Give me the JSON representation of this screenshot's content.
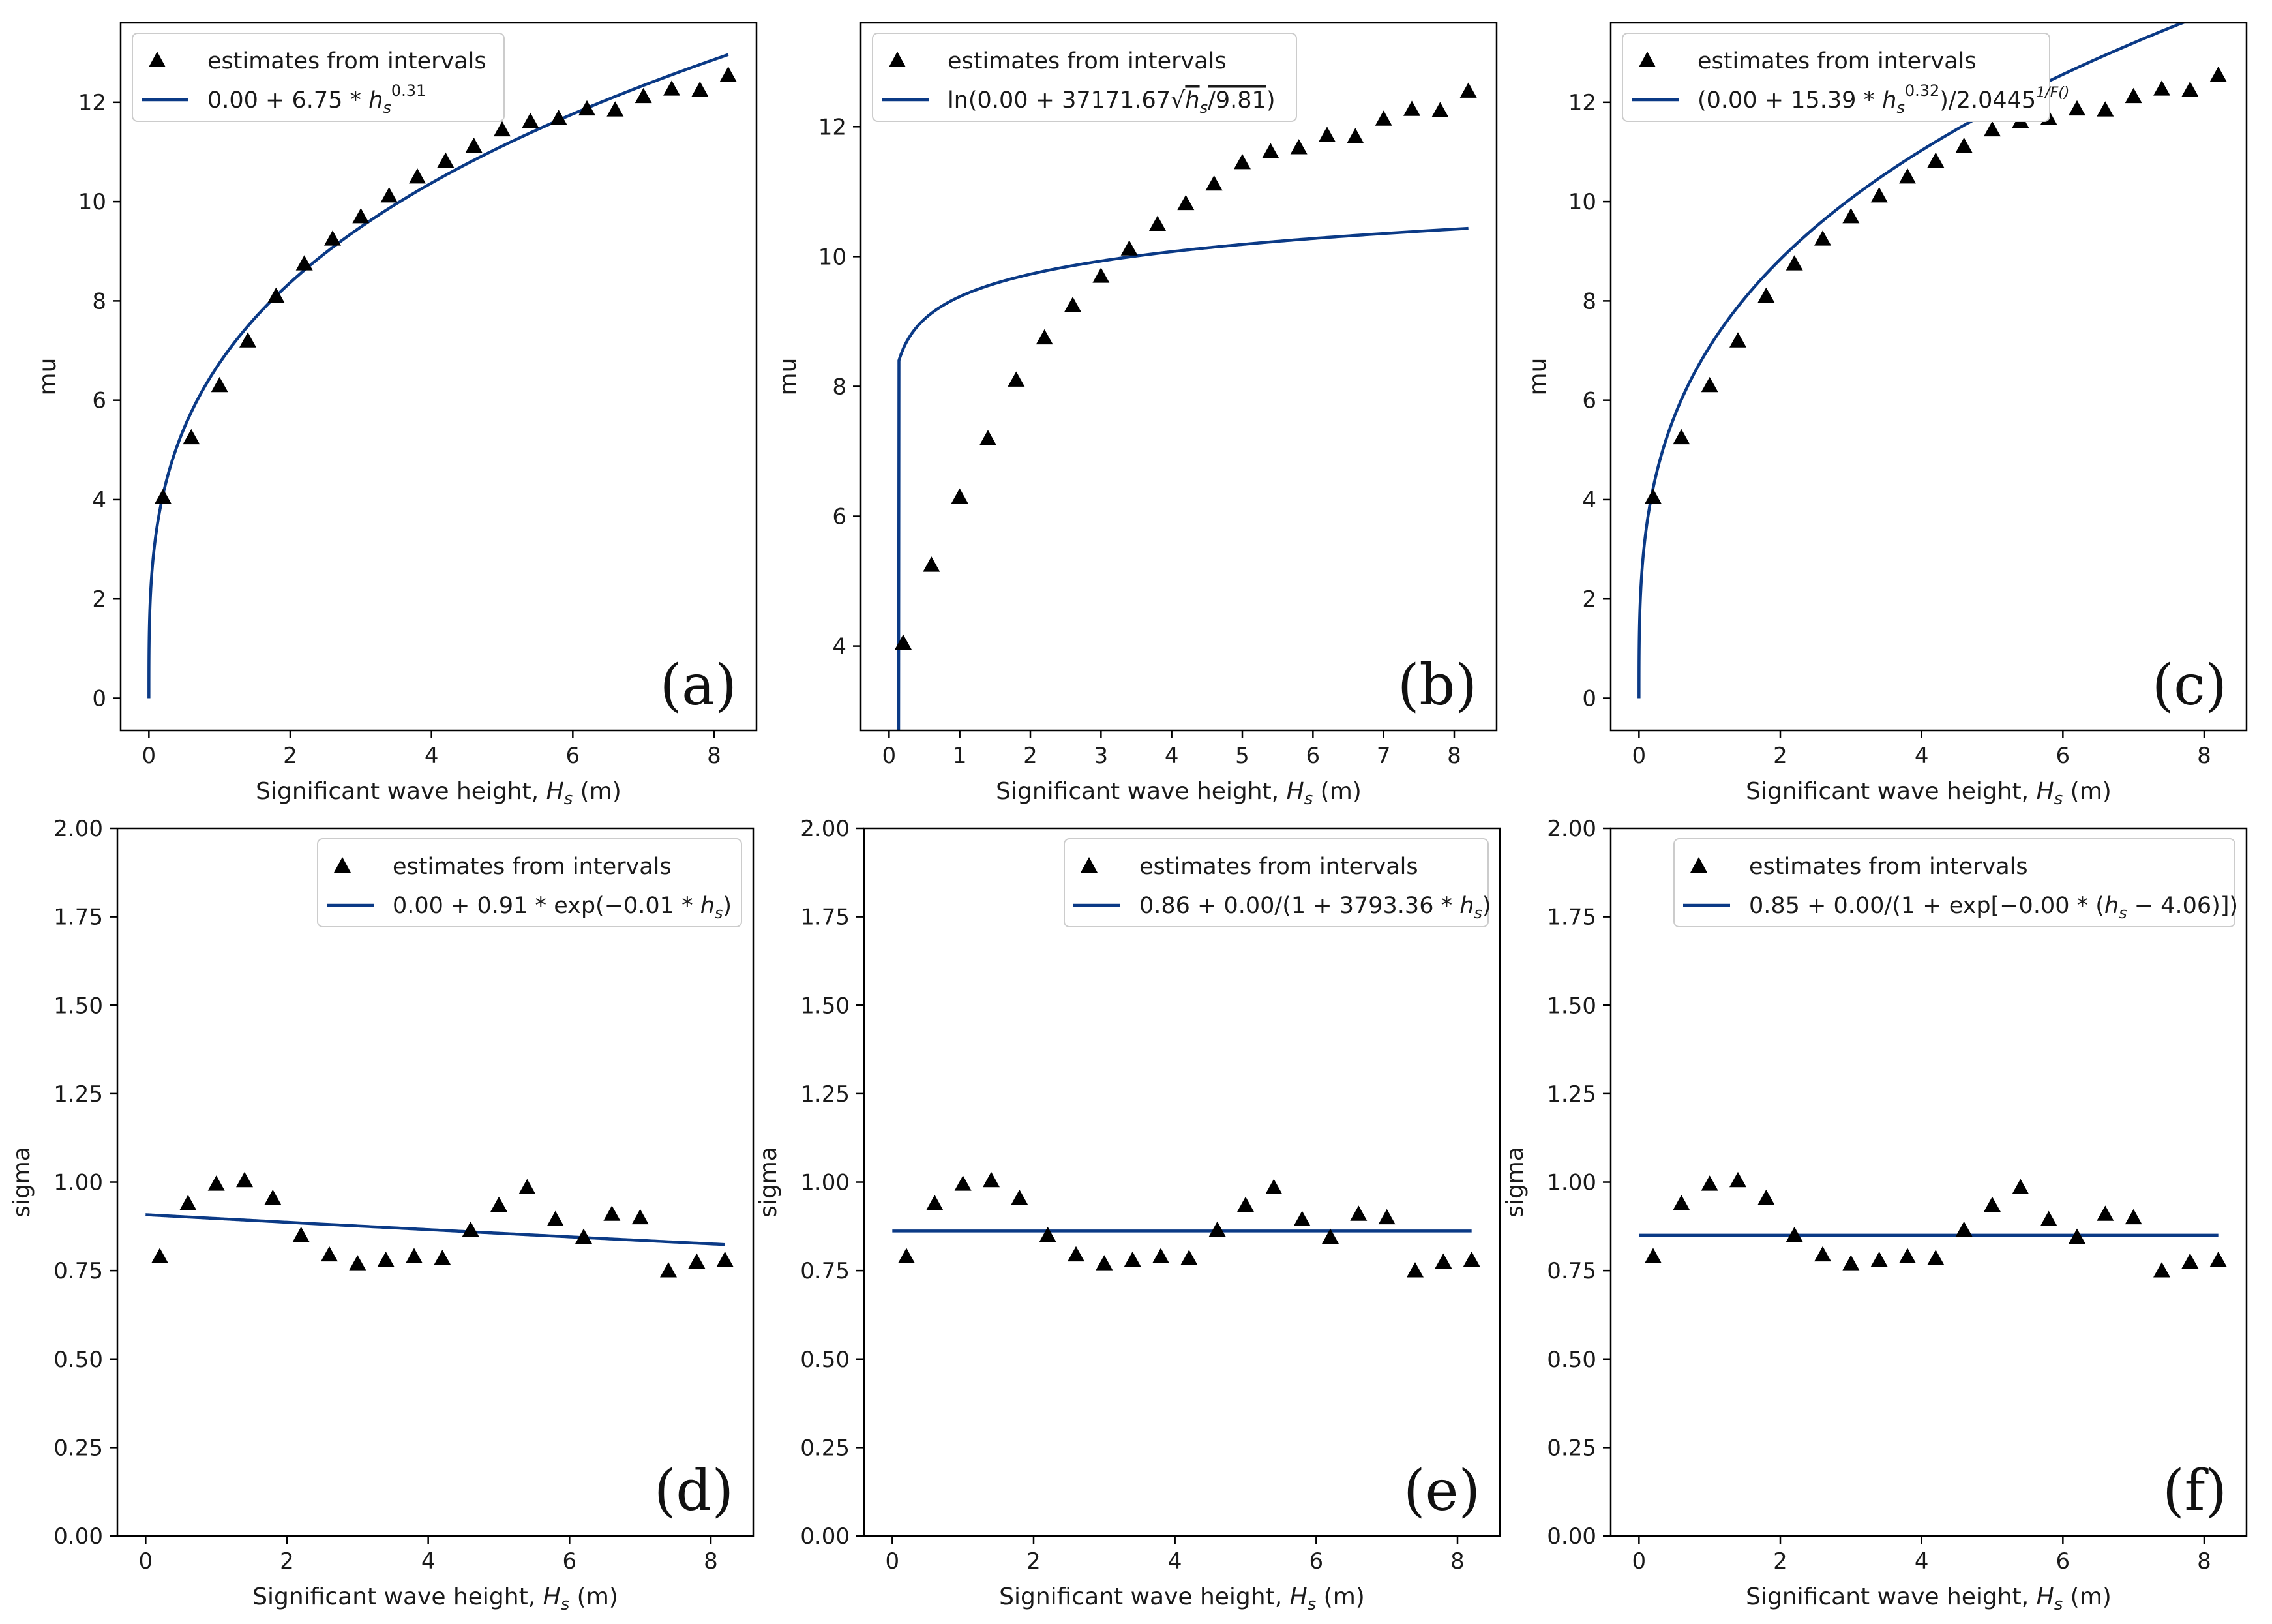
{
  "colors": {
    "fit_line": "#0b3a86",
    "marker": "#000000",
    "axes": "#000000"
  },
  "chart_data": [
    {
      "id": "a",
      "type": "scatter+line",
      "panel_label": "(a)",
      "xlabel": {
        "prefix": "Significant wave height, ",
        "var": "H",
        "sub": "s",
        "suffix": " (m)"
      },
      "ylabel": "mu",
      "xlim": [
        -0.4,
        8.6
      ],
      "ylim": [
        -0.65,
        13.6
      ],
      "xticks": [
        0,
        2,
        4,
        6,
        8
      ],
      "yticks": [
        0,
        2,
        4,
        6,
        8,
        10,
        12
      ],
      "tick_labels_y": [
        "0",
        "2",
        "4",
        "6",
        "8",
        "10",
        "12"
      ],
      "tick_labels_x": [
        "0",
        "2",
        "4",
        "6",
        "8"
      ],
      "legend_position": "upper-left",
      "legend": {
        "points": "estimates from intervals",
        "fit": "0.00 + 6.75 * hs^0.31",
        "fit_parts": {
          "a": "0.00 + 6.75 * ",
          "var": "h",
          "sub": "s",
          "sup": "0.31"
        }
      },
      "points": {
        "x": [
          0.2,
          0.6,
          1.0,
          1.4,
          1.8,
          2.2,
          2.6,
          3.0,
          3.4,
          3.8,
          4.2,
          4.6,
          5.0,
          5.4,
          5.8,
          6.2,
          6.6,
          7.0,
          7.4,
          7.8,
          8.2
        ],
        "y": [
          4.05,
          5.25,
          6.3,
          7.2,
          8.1,
          8.75,
          9.25,
          9.7,
          10.12,
          10.5,
          10.82,
          11.12,
          11.45,
          11.62,
          11.68,
          11.87,
          11.85,
          12.12,
          12.27,
          12.25,
          12.55
        ]
      },
      "fit": {
        "model": "power",
        "c0": 0.0,
        "c1": 6.75,
        "c2": 0.31
      }
    },
    {
      "id": "b",
      "type": "scatter+line",
      "panel_label": "(b)",
      "xlabel": {
        "prefix": "Significant wave height, ",
        "var": "H",
        "sub": "s",
        "suffix": " (m)"
      },
      "ylabel": "mu",
      "xlim": [
        -0.4,
        8.6
      ],
      "ylim": [
        2.7,
        13.6
      ],
      "xticks": [
        0,
        1,
        2,
        3,
        4,
        5,
        6,
        7,
        8
      ],
      "yticks": [
        4,
        6,
        8,
        10,
        12
      ],
      "tick_labels_y": [
        "4",
        "6",
        "8",
        "10",
        "12"
      ],
      "tick_labels_x": [
        "0",
        "1",
        "2",
        "3",
        "4",
        "5",
        "6",
        "7",
        "8"
      ],
      "legend_position": "upper-left",
      "legend": {
        "points": "estimates from intervals",
        "fit": "ln(0.00 + 37171.67 sqrt(hs/9.81))",
        "fit_parts": {
          "a": "ln(0.00 + 37171.67",
          "var": "h",
          "sub": "s",
          "b": "/9.81",
          "c": ")"
        }
      },
      "points": {
        "x": [
          0.2,
          0.6,
          1.0,
          1.4,
          1.8,
          2.2,
          2.6,
          3.0,
          3.4,
          3.8,
          4.2,
          4.6,
          5.0,
          5.4,
          5.8,
          6.2,
          6.6,
          7.0,
          7.4,
          7.8,
          8.2
        ],
        "y": [
          4.05,
          5.25,
          6.3,
          7.2,
          8.1,
          8.75,
          9.25,
          9.7,
          10.12,
          10.5,
          10.82,
          11.12,
          11.45,
          11.62,
          11.68,
          11.87,
          11.85,
          12.12,
          12.27,
          12.25,
          12.55
        ]
      },
      "fit": {
        "model": "log_sqrt",
        "c0": 0.0,
        "c1": 37171.67,
        "c2": 9.81,
        "x_start": 0.14
      }
    },
    {
      "id": "c",
      "type": "scatter+line",
      "panel_label": "(c)",
      "xlabel": {
        "prefix": "Significant wave height, ",
        "var": "H",
        "sub": "s",
        "suffix": " (m)"
      },
      "ylabel": "mu",
      "xlim": [
        -0.4,
        8.6
      ],
      "ylim": [
        -0.65,
        13.6
      ],
      "xticks": [
        0,
        2,
        4,
        6,
        8
      ],
      "yticks": [
        0,
        2,
        4,
        6,
        8,
        10,
        12
      ],
      "tick_labels_y": [
        "0",
        "2",
        "4",
        "6",
        "8",
        "10",
        "12"
      ],
      "tick_labels_x": [
        "0",
        "2",
        "4",
        "6",
        "8"
      ],
      "legend_position": "upper-left",
      "legend": {
        "points": "estimates from intervals",
        "fit": "(0.00 + 15.39 * hs^0.32)/2.0445^(1/F())",
        "fit_parts": {
          "a": "(0.00 + 15.39 * ",
          "var": "h",
          "sub": "s",
          "sup": "0.32",
          "b": ")/2.0445",
          "sup2": "1/F()"
        }
      },
      "points": {
        "x": [
          0.2,
          0.6,
          1.0,
          1.4,
          1.8,
          2.2,
          2.6,
          3.0,
          3.4,
          3.8,
          4.2,
          4.6,
          5.0,
          5.4,
          5.8,
          6.2,
          6.6,
          7.0,
          7.4,
          7.8,
          8.2
        ],
        "y": [
          4.05,
          5.25,
          6.3,
          7.2,
          8.1,
          8.75,
          9.25,
          9.7,
          10.12,
          10.5,
          10.82,
          11.12,
          11.45,
          11.62,
          11.68,
          11.87,
          11.85,
          12.12,
          12.27,
          12.25,
          12.55
        ]
      },
      "fit": {
        "model": "power_scaled",
        "c0": 0.0,
        "c1": 15.39,
        "c2": 0.32,
        "c3": 2.0445,
        "scale": 0.46
      }
    },
    {
      "id": "d",
      "type": "scatter+line",
      "panel_label": "(d)",
      "xlabel": {
        "prefix": "Significant wave height, ",
        "var": "H",
        "sub": "s",
        "suffix": " (m)"
      },
      "ylabel": "sigma",
      "xlim": [
        -0.4,
        8.6
      ],
      "ylim": [
        0.0,
        2.0
      ],
      "xticks": [
        0,
        2,
        4,
        6,
        8
      ],
      "yticks": [
        0.0,
        0.25,
        0.5,
        0.75,
        1.0,
        1.25,
        1.5,
        1.75,
        2.0
      ],
      "tick_labels_y": [
        "0.00",
        "0.25",
        "0.50",
        "0.75",
        "1.00",
        "1.25",
        "1.50",
        "1.75",
        "2.00"
      ],
      "tick_labels_x": [
        "0",
        "2",
        "4",
        "6",
        "8"
      ],
      "legend_position": "upper-right",
      "legend": {
        "points": "estimates from intervals",
        "fit": "0.00 + 0.91 * exp(−0.01 * hs)",
        "fit_parts": {
          "a": "0.00 + 0.91 * exp(−0.01 * ",
          "var": "h",
          "sub": "s",
          "c": ")"
        }
      },
      "points": {
        "x": [
          0.2,
          0.6,
          1.0,
          1.4,
          1.8,
          2.2,
          2.6,
          3.0,
          3.4,
          3.8,
          4.2,
          4.6,
          5.0,
          5.4,
          5.8,
          6.2,
          6.6,
          7.0,
          7.4,
          7.8,
          8.2
        ],
        "y": [
          0.79,
          0.94,
          0.995,
          1.005,
          0.955,
          0.85,
          0.795,
          0.77,
          0.78,
          0.79,
          0.785,
          0.865,
          0.935,
          0.985,
          0.895,
          0.845,
          0.91,
          0.9,
          0.75,
          0.775,
          0.78
        ]
      },
      "fit": {
        "model": "exp",
        "c0": 0.0,
        "c1": 0.908,
        "c2": 0.0119
      }
    },
    {
      "id": "e",
      "type": "scatter+line",
      "panel_label": "(e)",
      "xlabel": {
        "prefix": "Significant wave height, ",
        "var": "H",
        "sub": "s",
        "suffix": " (m)"
      },
      "ylabel": "sigma",
      "xlim": [
        -0.4,
        8.6
      ],
      "ylim": [
        0.0,
        2.0
      ],
      "xticks": [
        0,
        2,
        4,
        6,
        8
      ],
      "yticks": [
        0.0,
        0.25,
        0.5,
        0.75,
        1.0,
        1.25,
        1.5,
        1.75,
        2.0
      ],
      "tick_labels_y": [
        "0.00",
        "0.25",
        "0.50",
        "0.75",
        "1.00",
        "1.25",
        "1.50",
        "1.75",
        "2.00"
      ],
      "tick_labels_x": [
        "0",
        "2",
        "4",
        "6",
        "8"
      ],
      "legend_position": "upper-right",
      "legend": {
        "points": "estimates from intervals",
        "fit": "0.86 + 0.00/(1 + 3793.36 * hs)",
        "fit_parts": {
          "a": "0.86 + 0.00/(1 + 3793.36 * ",
          "var": "h",
          "sub": "s",
          "c": ")"
        }
      },
      "points": {
        "x": [
          0.2,
          0.6,
          1.0,
          1.4,
          1.8,
          2.2,
          2.6,
          3.0,
          3.4,
          3.8,
          4.2,
          4.6,
          5.0,
          5.4,
          5.8,
          6.2,
          6.6,
          7.0,
          7.4,
          7.8,
          8.2
        ],
        "y": [
          0.79,
          0.94,
          0.995,
          1.005,
          0.955,
          0.85,
          0.795,
          0.77,
          0.78,
          0.79,
          0.785,
          0.865,
          0.935,
          0.985,
          0.895,
          0.845,
          0.91,
          0.9,
          0.75,
          0.775,
          0.78
        ]
      },
      "fit": {
        "model": "constant",
        "c0": 0.862
      }
    },
    {
      "id": "f",
      "type": "scatter+line",
      "panel_label": "(f)",
      "xlabel": {
        "prefix": "Significant wave height, ",
        "var": "H",
        "sub": "s",
        "suffix": " (m)"
      },
      "ylabel": "sigma",
      "xlim": [
        -0.4,
        8.6
      ],
      "ylim": [
        0.0,
        2.0
      ],
      "xticks": [
        0,
        2,
        4,
        6,
        8
      ],
      "yticks": [
        0.0,
        0.25,
        0.5,
        0.75,
        1.0,
        1.25,
        1.5,
        1.75,
        2.0
      ],
      "tick_labels_y": [
        "0.00",
        "0.25",
        "0.50",
        "0.75",
        "1.00",
        "1.25",
        "1.50",
        "1.75",
        "2.00"
      ],
      "tick_labels_x": [
        "0",
        "2",
        "4",
        "6",
        "8"
      ],
      "legend_position": "upper-right",
      "legend": {
        "points": "estimates from intervals",
        "fit": "0.85 + 0.00/(1 + exp[−0.00 * (hs − 4.06)])",
        "fit_parts": {
          "a": "0.85 + 0.00/(1 + exp[−0.00 * (",
          "var": "h",
          "sub": "s",
          "c": " − 4.06)])"
        }
      },
      "points": {
        "x": [
          0.2,
          0.6,
          1.0,
          1.4,
          1.8,
          2.2,
          2.6,
          3.0,
          3.4,
          3.8,
          4.2,
          4.6,
          5.0,
          5.4,
          5.8,
          6.2,
          6.6,
          7.0,
          7.4,
          7.8,
          8.2
        ],
        "y": [
          0.79,
          0.94,
          0.995,
          1.005,
          0.955,
          0.85,
          0.795,
          0.77,
          0.78,
          0.79,
          0.785,
          0.865,
          0.935,
          0.985,
          0.895,
          0.845,
          0.91,
          0.9,
          0.75,
          0.775,
          0.78
        ]
      },
      "fit": {
        "model": "constant",
        "c0": 0.85
      }
    }
  ]
}
